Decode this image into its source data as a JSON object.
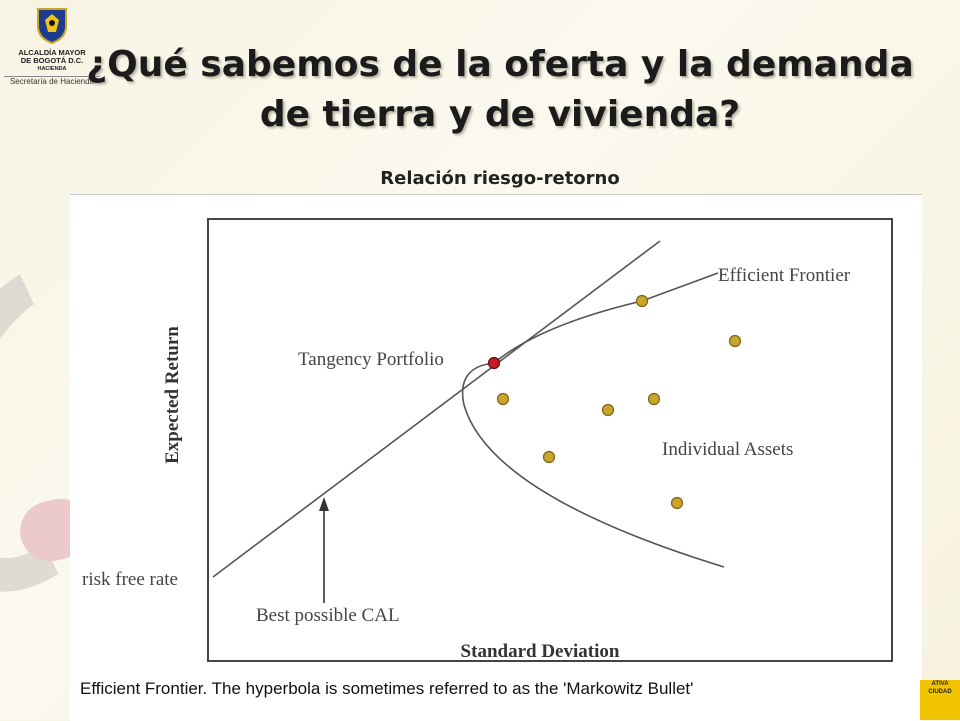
{
  "logo": {
    "line1": "ALCALDÍA MAYOR",
    "line2": "DE BOGOTÁ D.C.",
    "line3": "HACIENDA",
    "line4": "Secretaría de Hacienda"
  },
  "title": {
    "line1": "¿Qué sabemos de la oferta y la demanda",
    "line2": "de tierra y de vivienda?"
  },
  "subtitle": "Relación riesgo-retorno",
  "diagram": {
    "y_axis_label": "Expected Return",
    "x_axis_label": "Standard Deviation",
    "efficient_frontier_label": "Efficient Frontier",
    "tangency_label": "Tangency Portfolio",
    "assets_label": "Individual Assets",
    "risk_free_label": "risk free rate",
    "cal_label": "Best possible CAL",
    "caption": "Efficient Frontier. The hyperbola is sometimes referred to as the 'Markowitz Bullet'",
    "colors": {
      "asset_dot": "#c9a62a",
      "tangency_dot": "#c41c24",
      "lines": "#555555"
    }
  },
  "badge": {
    "line1": "ATIVA",
    "line2": "CIUDAD"
  }
}
